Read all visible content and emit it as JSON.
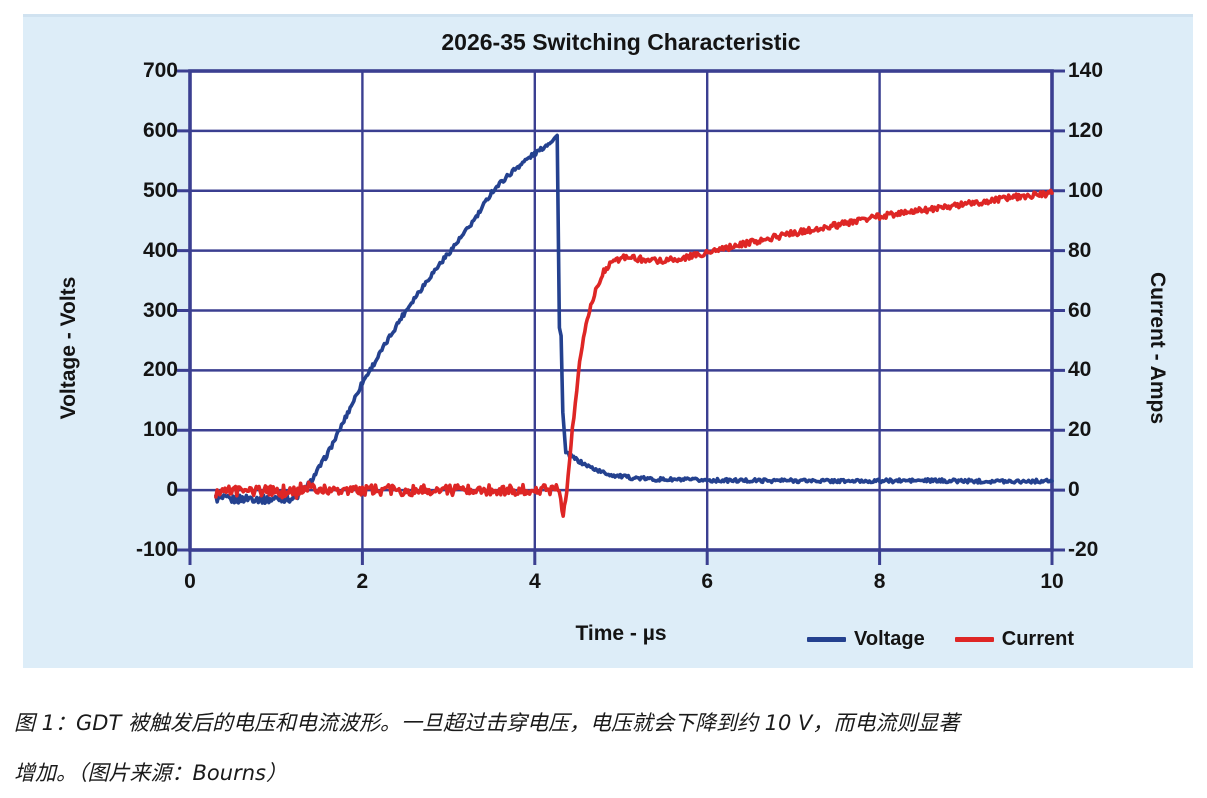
{
  "panel": {
    "background": "#ddedf8"
  },
  "caption": {
    "line1": "图 1：GDT 被触发后的电压和电流波形。一旦超过击穿电压，电压就会下降到约 10 V，而电流则显著",
    "line2": "增加。（图片来源：Bourns）"
  },
  "chart_data": {
    "type": "line",
    "title": "2026-35 Switching Characteristic",
    "xlabel": "Time - µs",
    "ylabel_left": "Voltage - Volts",
    "ylabel_right": "Current - Amps",
    "x_range": [
      0,
      10
    ],
    "y_left_range": [
      -100,
      700
    ],
    "y_right_range": [
      -20,
      140
    ],
    "x_ticks": [
      0,
      2,
      4,
      6,
      8,
      10
    ],
    "y_left_ticks": [
      700,
      600,
      500,
      400,
      300,
      200,
      100,
      0,
      -100
    ],
    "y_right_ticks": [
      140,
      120,
      100,
      80,
      60,
      40,
      20,
      0,
      -20
    ],
    "grid": true,
    "legend_position": "bottom-right",
    "colors": {
      "grid": "#3b3f91",
      "voltage": "#24418f",
      "current": "#de2625",
      "plot_bg": "#ffffff",
      "text": "#141414"
    },
    "legend": [
      {
        "name": "Voltage",
        "color": "#24418f"
      },
      {
        "name": "Current",
        "color": "#de2625"
      }
    ],
    "series": [
      {
        "name": "Voltage",
        "axis": "left",
        "color": "#24418f",
        "units": "V",
        "points": [
          [
            0.3,
            -14,
            7
          ],
          [
            0.5,
            -16,
            7
          ],
          [
            0.7,
            -13,
            7
          ],
          [
            0.9,
            -16,
            7
          ],
          [
            1.05,
            -13,
            7
          ],
          [
            1.2,
            -15,
            6
          ],
          [
            1.28,
            -5,
            8
          ],
          [
            1.33,
            2,
            6
          ],
          [
            1.4,
            14,
            4
          ],
          [
            1.5,
            38,
            4
          ],
          [
            1.6,
            62,
            4
          ],
          [
            1.7,
            90,
            4
          ],
          [
            1.8,
            120,
            4
          ],
          [
            1.9,
            150,
            4
          ],
          [
            2.0,
            180,
            4
          ],
          [
            2.15,
            215,
            4
          ],
          [
            2.3,
            252,
            4
          ],
          [
            2.45,
            288,
            4
          ],
          [
            2.6,
            320,
            4
          ],
          [
            2.75,
            350,
            4
          ],
          [
            2.9,
            378,
            4
          ],
          [
            3.05,
            405,
            4
          ],
          [
            3.2,
            432,
            4
          ],
          [
            3.35,
            462,
            4
          ],
          [
            3.5,
            498,
            4
          ],
          [
            3.65,
            520,
            4
          ],
          [
            3.8,
            540,
            4
          ],
          [
            3.95,
            557,
            4
          ],
          [
            4.1,
            572,
            3
          ],
          [
            4.2,
            584,
            3
          ],
          [
            4.26,
            592,
            1
          ],
          [
            4.285,
            272,
            1
          ],
          [
            4.305,
            258,
            1
          ],
          [
            4.325,
            130,
            1
          ],
          [
            4.36,
            62,
            3
          ],
          [
            4.45,
            54,
            3
          ],
          [
            4.55,
            45,
            3
          ],
          [
            4.65,
            38,
            3
          ],
          [
            4.78,
            30,
            3
          ],
          [
            4.9,
            25,
            3
          ],
          [
            5.1,
            21,
            3
          ],
          [
            5.4,
            18,
            3
          ],
          [
            5.8,
            17,
            3
          ],
          [
            6.3,
            16,
            3
          ],
          [
            7.0,
            16,
            3
          ],
          [
            7.7,
            15,
            3
          ],
          [
            8.5,
            16,
            3
          ],
          [
            9.2,
            15,
            3
          ],
          [
            10.0,
            15,
            3
          ]
        ]
      },
      {
        "name": "Current",
        "axis": "right",
        "color": "#de2625",
        "units": "A",
        "points": [
          [
            0.3,
            -0.5,
            1.8
          ],
          [
            0.8,
            0,
            1.8
          ],
          [
            1.25,
            -1,
            2.5
          ],
          [
            1.3,
            1,
            2.5
          ],
          [
            1.5,
            0,
            1.6
          ],
          [
            2.0,
            0,
            1.8
          ],
          [
            2.5,
            0,
            1.8
          ],
          [
            3.0,
            0,
            1.8
          ],
          [
            3.5,
            0,
            1.8
          ],
          [
            4.0,
            0,
            1.8
          ],
          [
            4.25,
            0,
            1.8
          ],
          [
            4.3,
            -3,
            2
          ],
          [
            4.33,
            -8,
            1
          ],
          [
            4.37,
            0,
            1
          ],
          [
            4.42,
            15,
            1
          ],
          [
            4.47,
            30,
            1
          ],
          [
            4.52,
            42,
            1
          ],
          [
            4.58,
            53,
            1
          ],
          [
            4.65,
            62,
            1
          ],
          [
            4.72,
            68,
            1
          ],
          [
            4.8,
            73,
            1
          ],
          [
            4.9,
            76,
            1
          ],
          [
            5.0,
            77.5,
            1
          ],
          [
            5.15,
            77.5,
            1
          ],
          [
            5.3,
            76.8,
            1
          ],
          [
            5.5,
            76.8,
            1
          ],
          [
            5.7,
            77.5,
            1
          ],
          [
            5.9,
            78.5,
            1
          ],
          [
            6.1,
            80,
            1
          ],
          [
            6.4,
            82,
            1
          ],
          [
            6.7,
            84,
            1
          ],
          [
            7.0,
            85.8,
            1
          ],
          [
            7.3,
            87.5,
            1
          ],
          [
            7.6,
            89,
            1
          ],
          [
            8.0,
            91.5,
            1
          ],
          [
            8.4,
            93,
            1
          ],
          [
            8.8,
            94.8,
            1
          ],
          [
            9.2,
            96.3,
            1
          ],
          [
            9.6,
            98,
            1
          ],
          [
            10.0,
            99.2,
            1
          ]
        ]
      }
    ]
  }
}
